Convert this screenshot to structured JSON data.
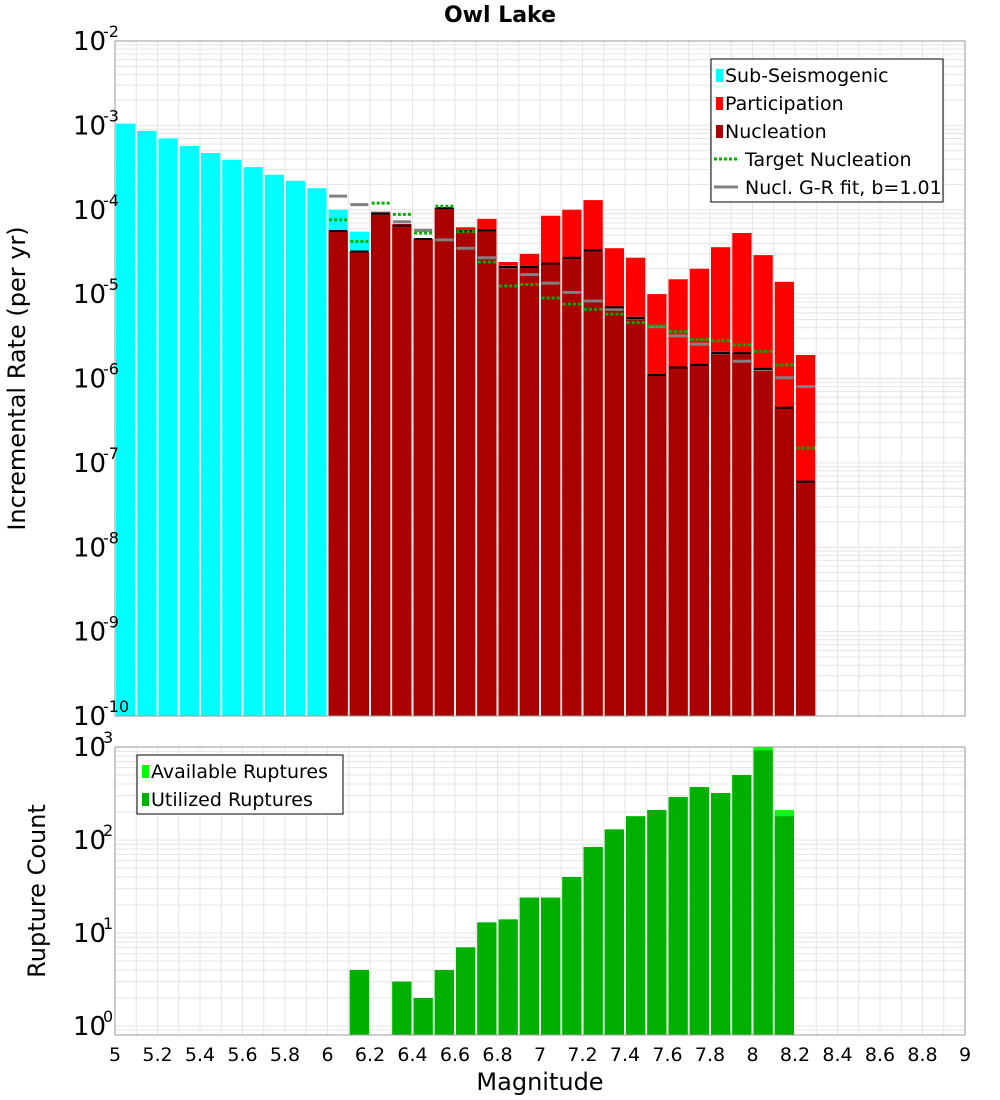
{
  "chart_data": [
    {
      "type": "bar",
      "title": "Owl Lake",
      "xlabel": "Magnitude",
      "ylabel": "Incremental Rate (per yr)",
      "yscale": "log",
      "xlim": [
        5,
        9
      ],
      "ylim": [
        1e-10,
        0.01
      ],
      "ytick_base": "10",
      "ytick_exponents": [
        "-10",
        "-9",
        "-8",
        "-7",
        "-6",
        "-5",
        "-4",
        "-3",
        "-2"
      ],
      "xticks": [
        "5",
        "5.2",
        "5.4",
        "5.6",
        "5.8",
        "6",
        "6.2",
        "6.4",
        "6.6",
        "6.8",
        "7",
        "7.2",
        "7.4",
        "7.6",
        "7.8",
        "8",
        "8.2",
        "8.4",
        "8.6",
        "8.8",
        "9"
      ],
      "legend": [
        "Sub-Seismogenic",
        "Participation",
        "Nucleation",
        "Target Nucleation",
        "Nucl. G-R fit, b=1.01"
      ],
      "colors": {
        "sub_seismogenic": "#00ffff",
        "participation": "#ff0000",
        "nucleation": "#aa0000",
        "target_nucleation": "#00b000",
        "gr_fit": "#808080",
        "grid": "#e4e4e4"
      },
      "series": [
        {
          "name": "Sub-Seismogenic",
          "x": [
            5.05,
            5.15,
            5.25,
            5.35,
            5.45,
            5.55,
            5.65,
            5.75,
            5.85,
            5.95,
            6.05,
            6.15
          ],
          "values": [
            0.00105,
            0.00086,
            0.0007,
            0.00057,
            0.00047,
            0.00039,
            0.00032,
            0.00026,
            0.00022,
            0.00018,
            0.0001,
            5.5e-05
          ]
        },
        {
          "name": "Participation",
          "x": [
            6.05,
            6.15,
            6.25,
            6.35,
            6.45,
            6.55,
            6.65,
            6.75,
            6.85,
            6.95,
            7.05,
            7.15,
            7.25,
            7.35,
            7.45,
            7.55,
            7.65,
            7.75,
            7.85,
            7.95,
            8.05,
            8.15,
            8.25
          ],
          "values": [
            5.6e-05,
            3.2e-05,
            9.5e-05,
            6.8e-05,
            4.5e-05,
            0.000105,
            6.2e-05,
            7.8e-05,
            2.4e-05,
            3e-05,
            8.5e-05,
            0.0001,
            0.00013,
            3.5e-05,
            2.7e-05,
            1e-05,
            1.5e-05,
            2e-05,
            3.6e-05,
            5.3e-05,
            2.9e-05,
            1.4e-05,
            1.9e-06
          ]
        },
        {
          "name": "Nucleation",
          "x": [
            6.05,
            6.15,
            6.25,
            6.35,
            6.45,
            6.55,
            6.65,
            6.75,
            6.85,
            6.95,
            7.05,
            7.15,
            7.25,
            7.35,
            7.45,
            7.55,
            7.65,
            7.75,
            7.85,
            7.95,
            8.05,
            8.15,
            8.25
          ],
          "values": [
            5.6e-05,
            3.2e-05,
            9e-05,
            6.5e-05,
            4.5e-05,
            0.000105,
            5.6e-05,
            5.7e-05,
            2.1e-05,
            2.1e-05,
            2.3e-05,
            2.7e-05,
            3.3e-05,
            7e-06,
            5.2e-06,
            1.1e-06,
            1.35e-06,
            1.45e-06,
            2e-06,
            2e-06,
            1.3e-06,
            4.5e-07,
            6e-08
          ]
        },
        {
          "name": "Target Nucleation",
          "x": [
            6.05,
            6.15,
            6.25,
            6.35,
            6.45,
            6.55,
            6.65,
            6.75,
            6.85,
            6.95,
            7.05,
            7.15,
            7.25,
            7.35,
            7.45,
            7.55,
            7.65,
            7.75,
            7.85,
            7.95,
            8.05,
            8.15,
            8.25
          ],
          "values": [
            7.6e-05,
            4.2e-05,
            0.00012,
            8.8e-05,
            5.3e-05,
            0.00011,
            5.5e-05,
            2.4e-05,
            1.25e-05,
            1.3e-05,
            9e-06,
            7.6e-06,
            6.6e-06,
            5.8e-06,
            4.6e-06,
            4.2e-06,
            3.6e-06,
            2.9e-06,
            2.8e-06,
            2.5e-06,
            2.1e-06,
            1.45e-06,
            1.5e-07
          ]
        },
        {
          "name": "Nucl. G-R fit, b=1.01",
          "x": [
            6.05,
            6.15,
            6.25,
            6.35,
            6.45,
            6.55,
            6.65,
            6.75,
            6.85,
            6.95,
            7.05,
            7.15,
            7.25,
            7.35,
            7.45,
            7.55,
            7.65,
            7.75,
            7.85,
            7.95,
            8.05,
            8.15,
            8.25
          ],
          "values": [
            0.000145,
            0.000115,
            9.1e-05,
            7.2e-05,
            5.7e-05,
            4.4e-05,
            3.5e-05,
            2.7e-05,
            2.1e-05,
            1.7e-05,
            1.35e-05,
            1.05e-05,
            8.3e-06,
            6.6e-06,
            5.2e-06,
            4.1e-06,
            3.2e-06,
            2.55e-06,
            2e-06,
            1.6e-06,
            1.28e-06,
            1.02e-06,
            8e-07
          ]
        }
      ]
    },
    {
      "type": "bar",
      "xlabel": "Magnitude",
      "ylabel": "Rupture Count",
      "yscale": "log",
      "xlim": [
        5,
        9
      ],
      "ylim": [
        0.8,
        1000
      ],
      "ytick_base": "10",
      "ytick_exponents": [
        "0",
        "1",
        "2",
        "3"
      ],
      "legend": [
        "Available Ruptures",
        "Utilized Ruptures"
      ],
      "colors": {
        "available": "#00ff00",
        "utilized": "#00b000",
        "grid": "#e4e4e4"
      },
      "series": [
        {
          "name": "Available Ruptures",
          "x": [
            6.15,
            6.35,
            6.45,
            6.55,
            6.65,
            6.75,
            6.85,
            6.95,
            7.05,
            7.15,
            7.25,
            7.35,
            7.45,
            7.55,
            7.65,
            7.75,
            7.85,
            7.95,
            8.05,
            8.15
          ],
          "values": [
            4,
            3,
            2,
            4,
            7,
            13,
            14,
            24,
            24,
            40,
            84,
            130,
            180,
            210,
            290,
            370,
            320,
            500,
            1000,
            210
          ]
        },
        {
          "name": "Utilized Ruptures",
          "x": [
            6.15,
            6.35,
            6.45,
            6.55,
            6.65,
            6.75,
            6.85,
            6.95,
            7.05,
            7.15,
            7.25,
            7.35,
            7.45,
            7.55,
            7.65,
            7.75,
            7.85,
            7.95,
            8.05,
            8.15
          ],
          "values": [
            4,
            3,
            2,
            4,
            7,
            13,
            14,
            24,
            24,
            40,
            84,
            130,
            180,
            210,
            290,
            370,
            320,
            500,
            920,
            180
          ]
        }
      ]
    }
  ]
}
